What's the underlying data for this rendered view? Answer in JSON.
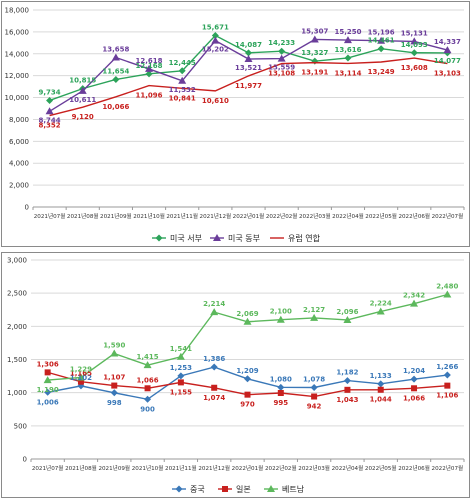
{
  "chart_data": [
    {
      "type": "line",
      "categories": [
        "2021년07월",
        "2021년08월",
        "2021년09월",
        "2021년10월",
        "2021년11월",
        "2021년12월",
        "2022년01월",
        "2022년02월",
        "2022년03월",
        "2022년04월",
        "2022년05월",
        "2022년06월",
        "2022년07월"
      ],
      "ylim": [
        0,
        18000
      ],
      "yticks": [
        "0",
        "2,000",
        "4,000",
        "6,000",
        "8,000",
        "10,000",
        "12,000",
        "14,000",
        "16,000",
        "18,000"
      ],
      "grid": true,
      "legend_position": "bottom",
      "series": [
        {
          "name": "미국 서부",
          "color": "#2ca35a",
          "marker": "diamond",
          "values": [
            9734,
            10815,
            11654,
            12168,
            12445,
            15671,
            14087,
            14233,
            13327,
            13616,
            14461,
            14093,
            14077
          ],
          "labels": [
            "9,734",
            "10,815",
            "11,654",
            "12,168",
            "12,445",
            "15,671",
            "14,087",
            "14,233",
            "13,327",
            "13,616",
            "14,461",
            "14,093",
            "14,077"
          ]
        },
        {
          "name": "미국 동부",
          "color": "#6a3d9a",
          "marker": "triangle",
          "values": [
            8744,
            10611,
            13658,
            12618,
            11532,
            15202,
            13521,
            13559,
            15307,
            15250,
            15196,
            15131,
            14337
          ],
          "labels": [
            "8,744",
            "10,611",
            "13,658",
            "12,618",
            "11,532",
            "15,202",
            "13,521",
            "13,559",
            "15,307",
            "15,250",
            "15,196",
            "15,131",
            "14,337"
          ]
        },
        {
          "name": "유럽 연합",
          "color": "#c8201e",
          "marker": "none",
          "values": [
            8352,
            9120,
            10066,
            11096,
            10841,
            10610,
            11977,
            13108,
            13191,
            13114,
            13249,
            13608,
            13103
          ],
          "labels": [
            "8,352",
            "9,120",
            "10,066",
            "11,096",
            "10,841",
            "10,610",
            "11,977",
            "13,108",
            "13,191",
            "13,114",
            "13,249",
            "13,608",
            "13,103"
          ]
        }
      ]
    },
    {
      "type": "line",
      "categories": [
        "2021년07월",
        "2021년08월",
        "2021년09월",
        "2021년10월",
        "2021년11월",
        "2021년12월",
        "2022년01월",
        "2022년02월",
        "2022년03월",
        "2022년04월",
        "2022년05월",
        "2022년06월",
        "2022년07월"
      ],
      "ylim": [
        0,
        3000
      ],
      "yticks": [
        "0",
        "500",
        "1,000",
        "1,500",
        "2,000",
        "2,500",
        "3,000"
      ],
      "grid": true,
      "legend_position": "bottom",
      "series": [
        {
          "name": "중국",
          "color": "#3a78b8",
          "marker": "diamond",
          "values": [
            1006,
            1102,
            998,
            900,
            1253,
            1386,
            1209,
            1080,
            1078,
            1182,
            1133,
            1204,
            1266
          ],
          "labels": [
            "1,006",
            "1,102",
            "998",
            "900",
            "1,253",
            "1,386",
            "1,209",
            "1,080",
            "1,078",
            "1,182",
            "1,133",
            "1,204",
            "1,266"
          ]
        },
        {
          "name": "일본",
          "color": "#c8201e",
          "marker": "square",
          "values": [
            1306,
            1165,
            1107,
            1066,
            1155,
            1074,
            970,
            995,
            942,
            1043,
            1044,
            1066,
            1106
          ],
          "labels": [
            "1,306",
            "1,165",
            "1,107",
            "1,066",
            "1,155",
            "1,074",
            "970",
            "995",
            "942",
            "1,043",
            "1,044",
            "1,066",
            "1,106"
          ]
        },
        {
          "name": "베트남",
          "color": "#5cb85c",
          "marker": "triangle",
          "values": [
            1190,
            1229,
            1590,
            1415,
            1541,
            2214,
            2069,
            2100,
            2127,
            2096,
            2224,
            2342,
            2480
          ],
          "labels": [
            "1,190",
            "1,229",
            "1,590",
            "1,415",
            "1,541",
            "2,214",
            "2,069",
            "2,100",
            "2,127",
            "2,096",
            "2,224",
            "2,342",
            "2,480"
          ]
        }
      ]
    }
  ]
}
